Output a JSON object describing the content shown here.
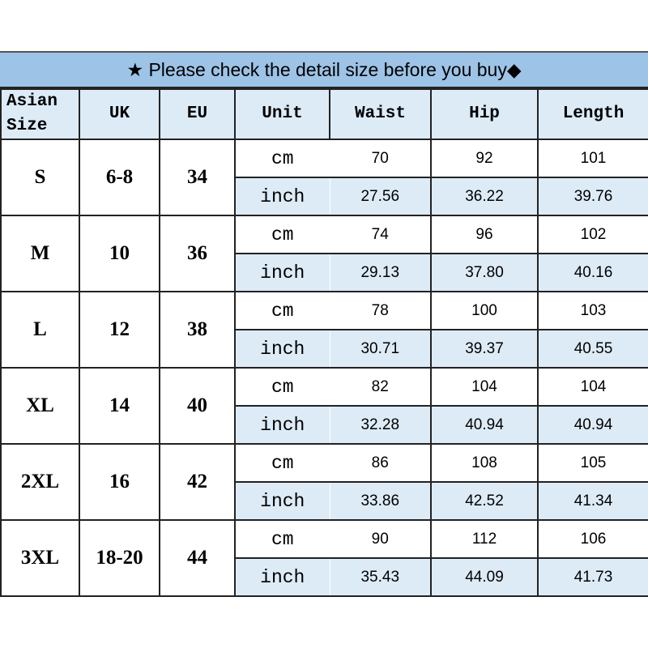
{
  "title": "★ Please check the detail size before you buy◆",
  "headers": [
    "Asian Size",
    "UK",
    "EU",
    "Unit",
    "Waist",
    "Hip",
    "Length"
  ],
  "colors": {
    "title_bg": "#9dc3e6",
    "header_bg": "#ddebf7"
  },
  "rows": [
    {
      "asian": "S",
      "uk": "6-8",
      "eu": "34",
      "cm": [
        "70",
        "92",
        "101"
      ],
      "inch": [
        "27.56",
        "36.22",
        "39.76"
      ]
    },
    {
      "asian": "M",
      "uk": "10",
      "eu": "36",
      "cm": [
        "74",
        "96",
        "102"
      ],
      "inch": [
        "29.13",
        "37.80",
        "40.16"
      ]
    },
    {
      "asian": "L",
      "uk": "12",
      "eu": "38",
      "cm": [
        "78",
        "100",
        "103"
      ],
      "inch": [
        "30.71",
        "39.37",
        "40.55"
      ]
    },
    {
      "asian": "XL",
      "uk": "14",
      "eu": "40",
      "cm": [
        "82",
        "104",
        "104"
      ],
      "inch": [
        "32.28",
        "40.94",
        "40.94"
      ]
    },
    {
      "asian": "2XL",
      "uk": "16",
      "eu": "42",
      "cm": [
        "86",
        "108",
        "105"
      ],
      "inch": [
        "33.86",
        "42.52",
        "41.34"
      ]
    },
    {
      "asian": "3XL",
      "uk": "18-20",
      "eu": "44",
      "cm": [
        "90",
        "112",
        "106"
      ],
      "inch": [
        "35.43",
        "44.09",
        "41.73"
      ]
    }
  ],
  "units": {
    "cm": "cm",
    "inch": "inch"
  }
}
